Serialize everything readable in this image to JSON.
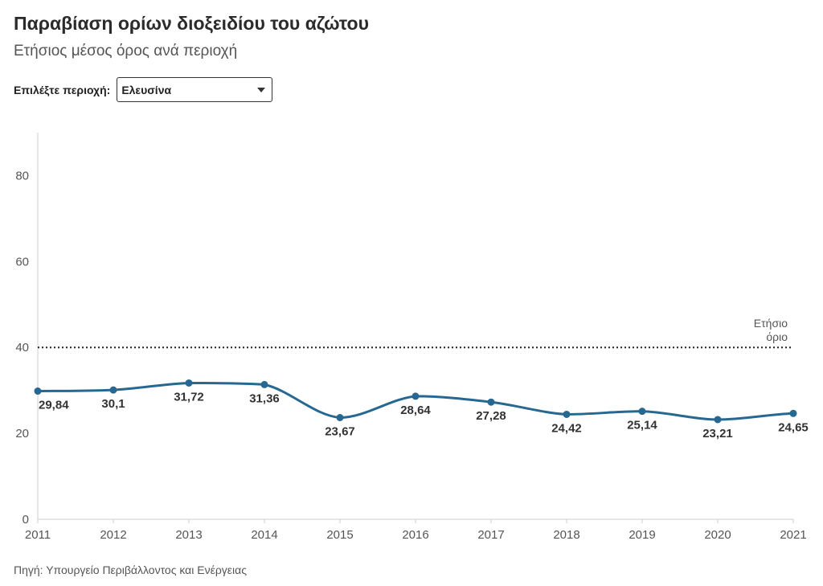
{
  "header": {
    "title": "Παραβίαση ορίων διοξειδίου του αζώτου",
    "subtitle": "Ετήσιος μέσος όρος ανά περιοχή"
  },
  "selector": {
    "label": "Επιλέξτε περιοχή:",
    "value": "Ελευσίνα"
  },
  "footer": {
    "source": "Πηγή: Υπουργείο Περιβάλλοντος και Ενέργειας"
  },
  "chart_data": {
    "type": "line",
    "title": "Παραβίαση ορίων διοξειδίου του αζώτου",
    "subtitle": "Ετήσιος μέσος όρος ανά περιοχή",
    "xlabel": "",
    "ylabel": "",
    "x": [
      2011,
      2012,
      2013,
      2014,
      2015,
      2016,
      2017,
      2018,
      2019,
      2020,
      2021
    ],
    "x_tick_labels": [
      "2011",
      "2012",
      "2013",
      "2014",
      "2015",
      "2016",
      "2017",
      "2018",
      "2019",
      "2020",
      "2021"
    ],
    "series": [
      {
        "name": "Ελευσίνα",
        "values": [
          29.84,
          30.1,
          31.72,
          31.36,
          23.67,
          28.64,
          27.28,
          24.42,
          25.14,
          23.21,
          24.65
        ],
        "labels": [
          "29,84",
          "30,1",
          "31,72",
          "31,36",
          "23,67",
          "28,64",
          "27,28",
          "24,42",
          "25,14",
          "23,21",
          "24,65"
        ],
        "color": "#266891"
      }
    ],
    "ylim": [
      0,
      90
    ],
    "y_ticks": [
      0,
      20,
      40,
      60,
      80
    ],
    "grid": false,
    "reference_line": {
      "value": 40,
      "label_lines": [
        "Ετήσιο",
        "όριο"
      ],
      "style": "dotted"
    }
  },
  "colors": {
    "line": "#266891",
    "axis": "#cccccc",
    "reference": "#222222"
  }
}
